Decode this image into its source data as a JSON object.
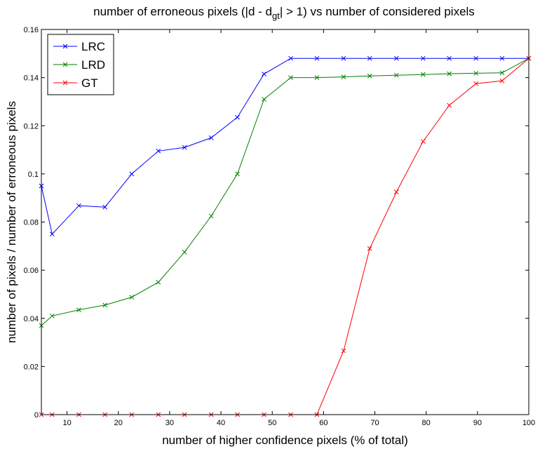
{
  "chart_data": {
    "type": "line",
    "title_parts": {
      "prefix": "number of erroneous pixels (|d - d",
      "subscript": "gt",
      "suffix": "| > 1) vs number of considered pixels"
    },
    "xlabel": "number of higher confidence pixels (% of total)",
    "ylabel": "number of pixels / number of erroneous pixels",
    "xlim": [
      5,
      100
    ],
    "ylim": [
      0,
      0.16
    ],
    "xticks": [
      10,
      20,
      30,
      40,
      50,
      60,
      70,
      80,
      90,
      100
    ],
    "xtick_labels": [
      "10",
      "20",
      "30",
      "40",
      "50",
      "60",
      "70",
      "80",
      "90",
      "100"
    ],
    "yticks": [
      0,
      0.02,
      0.04,
      0.06,
      0.08,
      0.1,
      0.12,
      0.14,
      0.16
    ],
    "ytick_labels": [
      "0",
      "0.02",
      "0.04",
      "0.06",
      "0.08",
      "0.1",
      "0.12",
      "0.14",
      "0.16"
    ],
    "grid": false,
    "legend_position": "top-left",
    "x": [
      5,
      7.1,
      12.3,
      17.4,
      22.6,
      27.8,
      32.9,
      38.1,
      43.2,
      48.4,
      53.6,
      58.7,
      63.9,
      69.0,
      74.2,
      79.4,
      84.5,
      89.7,
      94.8,
      100
    ],
    "series": [
      {
        "name": "LRC",
        "color": "#0000ff",
        "values": [
          0.095,
          0.075,
          0.0868,
          0.0862,
          0.1,
          0.1095,
          0.111,
          0.115,
          0.1235,
          0.1415,
          0.148,
          0.148,
          0.148,
          0.148,
          0.148,
          0.148,
          0.148,
          0.148,
          0.148,
          0.148
        ]
      },
      {
        "name": "LRD",
        "color": "#008000",
        "values": [
          0.037,
          0.041,
          0.0435,
          0.0455,
          0.0488,
          0.055,
          0.0675,
          0.0825,
          0.1,
          0.131,
          0.14,
          0.14,
          0.1403,
          0.1407,
          0.141,
          0.1413,
          0.1416,
          0.1418,
          0.142,
          0.148
        ]
      },
      {
        "name": "GT",
        "color": "#ff0000",
        "values": [
          0,
          0,
          0,
          0,
          0,
          0,
          0,
          0,
          0,
          0,
          0,
          0,
          0.0265,
          0.069,
          0.0925,
          0.1135,
          0.1285,
          0.1375,
          0.1387,
          0.148
        ]
      }
    ]
  }
}
